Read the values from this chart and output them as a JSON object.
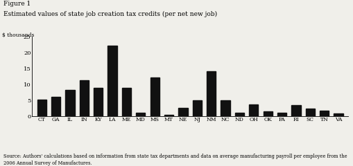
{
  "title_line1": "Figure 1",
  "title_line2": "Estimated values of state job creation tax credits (per net new job)",
  "ylabel": "$ thousands",
  "categories": [
    "CT",
    "GA",
    "IL",
    "IN",
    "KY",
    "LA",
    "ME",
    "MD",
    "MS",
    "MT",
    "NE",
    "NJ",
    "NM",
    "NC",
    "ND",
    "OH",
    "OK",
    "PA",
    "RI",
    "SC",
    "TN",
    "VA"
  ],
  "values": [
    5.2,
    6.1,
    8.3,
    11.3,
    9.0,
    22.2,
    9.0,
    1.0,
    12.2,
    0.4,
    2.6,
    4.9,
    14.0,
    5.0,
    1.0,
    3.7,
    1.5,
    1.0,
    3.4,
    2.3,
    1.8,
    0.9
  ],
  "bar_color": "#111111",
  "background_color": "#f0efea",
  "ylim": [
    0,
    25
  ],
  "yticks": [
    0,
    5,
    10,
    15,
    20,
    25
  ],
  "source_text": "Source: Authors' calculations based on information from state tax departments and data on average manufacturing payroll per employee from the\n2006 Annual Survey of Manufactures."
}
